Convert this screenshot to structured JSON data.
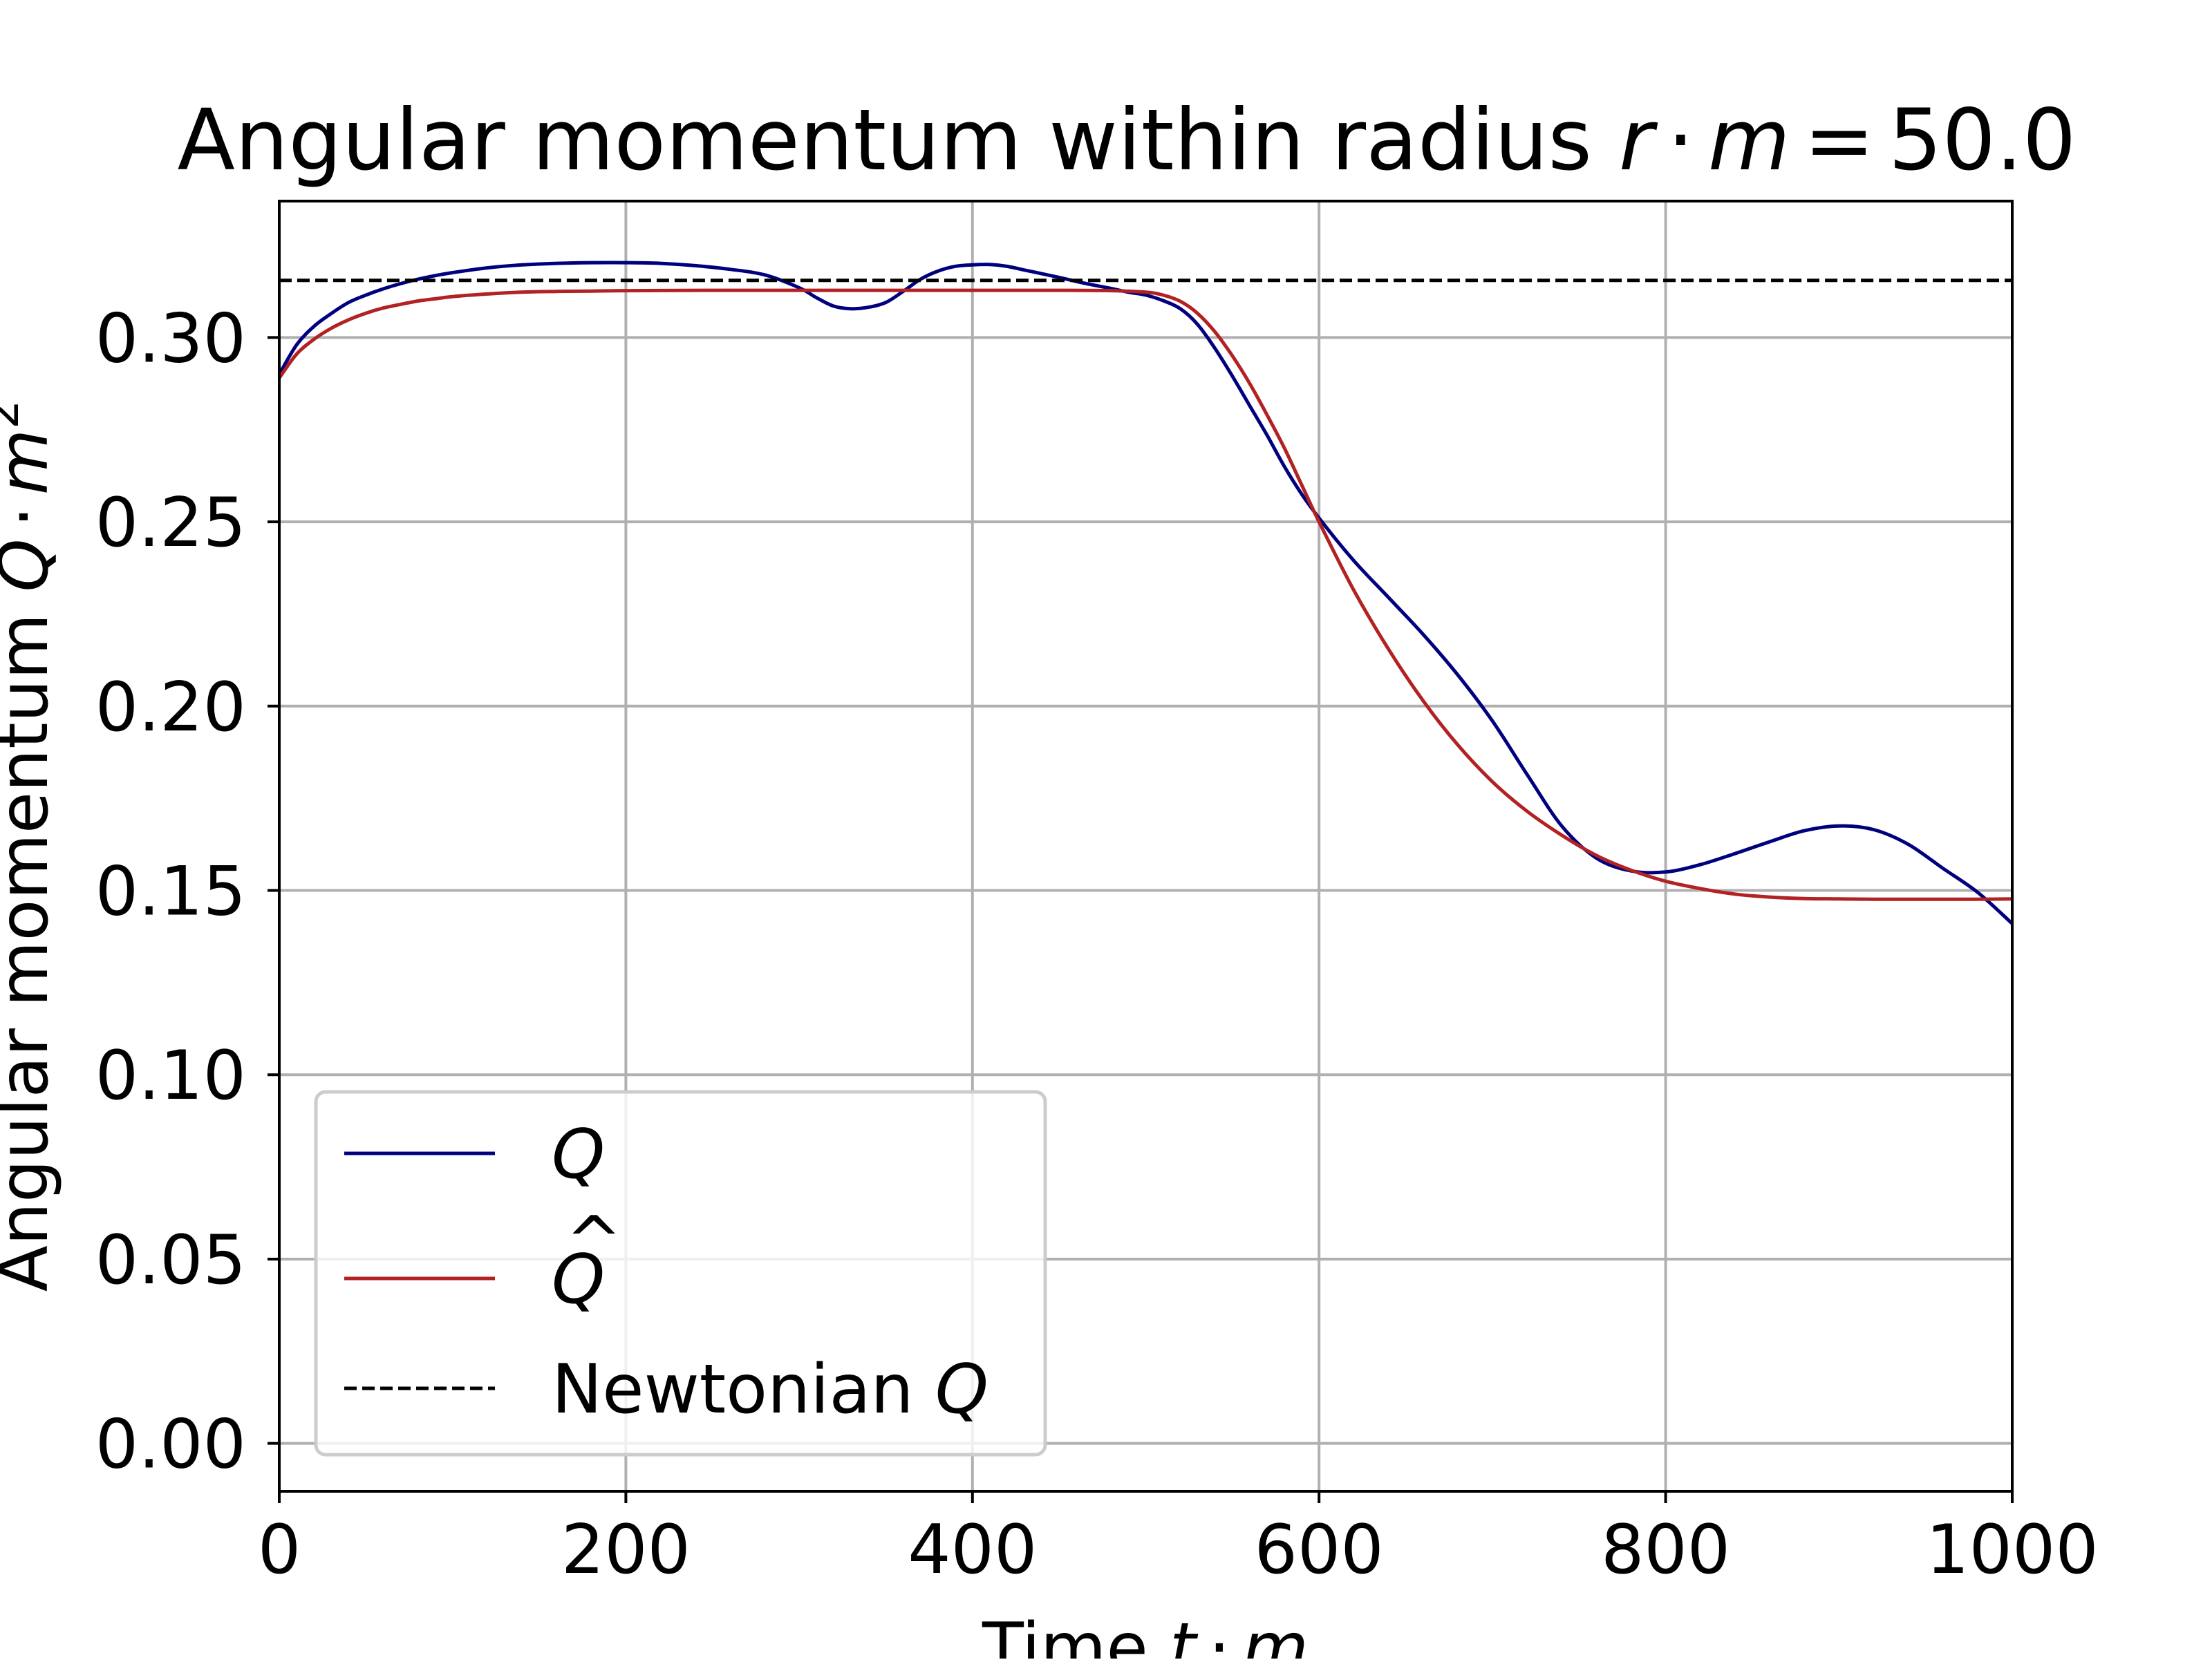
{
  "chart_data": {
    "type": "line",
    "title": {
      "text": "Angular momentum within radius ",
      "math_var1": "r",
      "math_dot": "·",
      "math_var2": "m",
      "math_eq": "=",
      "math_value": "50.0"
    },
    "xlabel": {
      "text": "Time ",
      "var1": "t",
      "dot": "·",
      "var2": "m"
    },
    "ylabel": {
      "text": "Angular momentum ",
      "var1": "Q",
      "dot": "·",
      "var2": "m",
      "sup": "2"
    },
    "xlim": [
      0,
      1000
    ],
    "ylim": [
      -0.013,
      0.337
    ],
    "xticks": [
      0,
      200,
      400,
      600,
      800,
      1000
    ],
    "xtick_labels": [
      "0",
      "200",
      "400",
      "600",
      "800",
      "1000"
    ],
    "yticks": [
      0.0,
      0.05,
      0.1,
      0.15,
      0.2,
      0.25,
      0.3
    ],
    "ytick_labels": [
      "0.00",
      "0.05",
      "0.10",
      "0.15",
      "0.20",
      "0.25",
      "0.30"
    ],
    "grid": true,
    "legend_position": "lower-left",
    "series": [
      {
        "name": "Q",
        "style": "solid",
        "color": "#00007f",
        "x": [
          0,
          10,
          20,
          30,
          40,
          50,
          60,
          70,
          80,
          90,
          100,
          120,
          140,
          160,
          180,
          200,
          220,
          240,
          260,
          280,
          300,
          310,
          320,
          330,
          340,
          350,
          360,
          370,
          380,
          390,
          400,
          410,
          420,
          430,
          440,
          450,
          460,
          470,
          480,
          490,
          500,
          510,
          520,
          530,
          540,
          550,
          560,
          570,
          580,
          590,
          600,
          620,
          640,
          660,
          680,
          700,
          720,
          740,
          760,
          780,
          800,
          820,
          840,
          860,
          880,
          900,
          920,
          940,
          960,
          980,
          1000
        ],
        "y": [
          0.29,
          0.298,
          0.303,
          0.3065,
          0.3095,
          0.3115,
          0.3132,
          0.3146,
          0.3158,
          0.3168,
          0.3176,
          0.3189,
          0.3197,
          0.3201,
          0.3203,
          0.3203,
          0.3201,
          0.3195,
          0.3185,
          0.317,
          0.3135,
          0.3108,
          0.3085,
          0.3078,
          0.3082,
          0.3095,
          0.3125,
          0.3158,
          0.318,
          0.3193,
          0.3197,
          0.3198,
          0.3193,
          0.3183,
          0.3173,
          0.3163,
          0.3152,
          0.3142,
          0.3133,
          0.3123,
          0.3115,
          0.31,
          0.3078,
          0.3035,
          0.297,
          0.2895,
          0.2815,
          0.2735,
          0.265,
          0.2575,
          0.251,
          0.2395,
          0.2295,
          0.2195,
          0.2085,
          0.196,
          0.1815,
          0.1675,
          0.1588,
          0.1553,
          0.155,
          0.157,
          0.16,
          0.1632,
          0.1662,
          0.1675,
          0.1665,
          0.1625,
          0.156,
          0.1495,
          0.141
        ]
      },
      {
        "name": "Q̂",
        "style": "solid",
        "color": "#b22222",
        "x": [
          0,
          10,
          20,
          30,
          40,
          50,
          60,
          70,
          80,
          90,
          100,
          120,
          140,
          160,
          180,
          200,
          250,
          300,
          350,
          400,
          450,
          480,
          500,
          510,
          520,
          530,
          540,
          550,
          560,
          570,
          580,
          590,
          600,
          620,
          640,
          660,
          680,
          700,
          720,
          740,
          760,
          780,
          800,
          820,
          840,
          860,
          880,
          900,
          920,
          940,
          960,
          980,
          1000
        ],
        "y": [
          0.289,
          0.2955,
          0.2995,
          0.3025,
          0.3048,
          0.3066,
          0.308,
          0.309,
          0.3099,
          0.3105,
          0.3111,
          0.3118,
          0.3123,
          0.3125,
          0.3126,
          0.3127,
          0.3128,
          0.3128,
          0.3128,
          0.3128,
          0.3128,
          0.3127,
          0.3123,
          0.3115,
          0.3098,
          0.3065,
          0.3015,
          0.295,
          0.2875,
          0.279,
          0.27,
          0.26,
          0.25,
          0.2315,
          0.2155,
          0.2015,
          0.1895,
          0.1795,
          0.1715,
          0.165,
          0.1595,
          0.1555,
          0.1525,
          0.1505,
          0.149,
          0.1482,
          0.1478,
          0.1477,
          0.1476,
          0.1476,
          0.1476,
          0.1476,
          0.1477
        ]
      },
      {
        "name": "Newtonian Q",
        "style": "dashed",
        "color": "#000000",
        "x": [
          0,
          1000
        ],
        "y": [
          0.3155,
          0.3155
        ]
      }
    ],
    "legend": {
      "items": [
        {
          "label_var": "Q",
          "label_text": "",
          "style": "solid",
          "color": "#00007f",
          "hat": false
        },
        {
          "label_var": "Q",
          "label_text": "",
          "style": "solid",
          "color": "#b22222",
          "hat": true
        },
        {
          "label_var": "Q",
          "label_text": "Newtonian ",
          "style": "dashed",
          "color": "#000000",
          "hat": false
        }
      ]
    }
  }
}
